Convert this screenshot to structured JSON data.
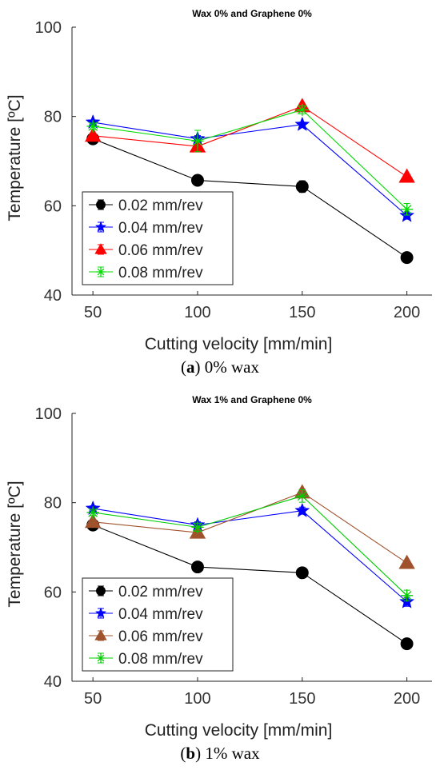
{
  "figures": [
    {
      "caption": {
        "letter": "a",
        "text": "0% wax"
      },
      "chart_data": {
        "type": "line",
        "title": "Wax 0% and Graphene 0%",
        "xlabel": "Cutting velocity [mm/min]",
        "ylabel": "Temperature [ºC]",
        "x": [
          50,
          100,
          150,
          200
        ],
        "xticks": [
          "50",
          "100",
          "150",
          "200"
        ],
        "yticks": [
          "40",
          "60",
          "80",
          "100"
        ],
        "xlim": [
          40,
          212
        ],
        "ylim": [
          40,
          100
        ],
        "grid": false,
        "legend_position": "bottom-left",
        "series": [
          {
            "name": "0.02 mm/rev",
            "color": "#000000",
            "marker": "circle",
            "values": [
              75.0,
              65.7,
              64.3,
              48.4
            ],
            "errors": [
              0.6,
              0.6,
              1.3,
              0.5
            ]
          },
          {
            "name": "0.04 mm/rev",
            "color": "#0000ff",
            "marker": "star",
            "values": [
              78.7,
              75.0,
              78.2,
              57.8
            ],
            "errors": [
              0.5,
              0.7,
              0.5,
              0.8
            ]
          },
          {
            "name": "0.06 mm/rev",
            "color": "#ff0000",
            "marker": "triangle",
            "values": [
              75.7,
              73.3,
              82.3,
              66.5
            ],
            "errors": [
              0.5,
              0.6,
              0.5,
              0.5
            ]
          },
          {
            "name": "0.08 mm/rev",
            "color": "#00dd00",
            "marker": "asterisk",
            "values": [
              77.8,
              74.5,
              81.5,
              59.2
            ],
            "errors": [
              0.7,
              2.4,
              0.9,
              1.3
            ]
          }
        ]
      }
    },
    {
      "caption": {
        "letter": "b",
        "text": "1% wax"
      },
      "chart_data": {
        "type": "line",
        "title": "Wax 1% and Graphene 0%",
        "xlabel": "Cutting velocity [mm/min]",
        "ylabel": "Temperature [ºC]",
        "x": [
          50,
          100,
          150,
          200
        ],
        "xticks": [
          "50",
          "100",
          "150",
          "200"
        ],
        "yticks": [
          "40",
          "60",
          "80",
          "100"
        ],
        "xlim": [
          40,
          212
        ],
        "ylim": [
          40,
          100
        ],
        "grid": false,
        "legend_position": "bottom-left",
        "series": [
          {
            "name": "0.02 mm/rev",
            "color": "#000000",
            "marker": "circle",
            "values": [
              75.0,
              65.6,
              64.3,
              48.4
            ],
            "errors": [
              0.6,
              0.6,
              0.6,
              0.6
            ]
          },
          {
            "name": "0.04 mm/rev",
            "color": "#0000ff",
            "marker": "star",
            "values": [
              78.7,
              75.0,
              78.2,
              57.8
            ],
            "errors": [
              0.6,
              0.7,
              0.8,
              1.0
            ]
          },
          {
            "name": "0.06 mm/rev",
            "color": "#a0522d",
            "marker": "triangle",
            "values": [
              75.7,
              73.3,
              82.3,
              66.5
            ],
            "errors": [
              0.6,
              0.6,
              0.7,
              0.5
            ]
          },
          {
            "name": "0.08 mm/rev",
            "color": "#00cc00",
            "marker": "asterisk",
            "values": [
              77.8,
              74.5,
              81.5,
              59.2
            ],
            "errors": [
              0.7,
              0.9,
              1.4,
              1.2
            ]
          }
        ]
      }
    }
  ]
}
